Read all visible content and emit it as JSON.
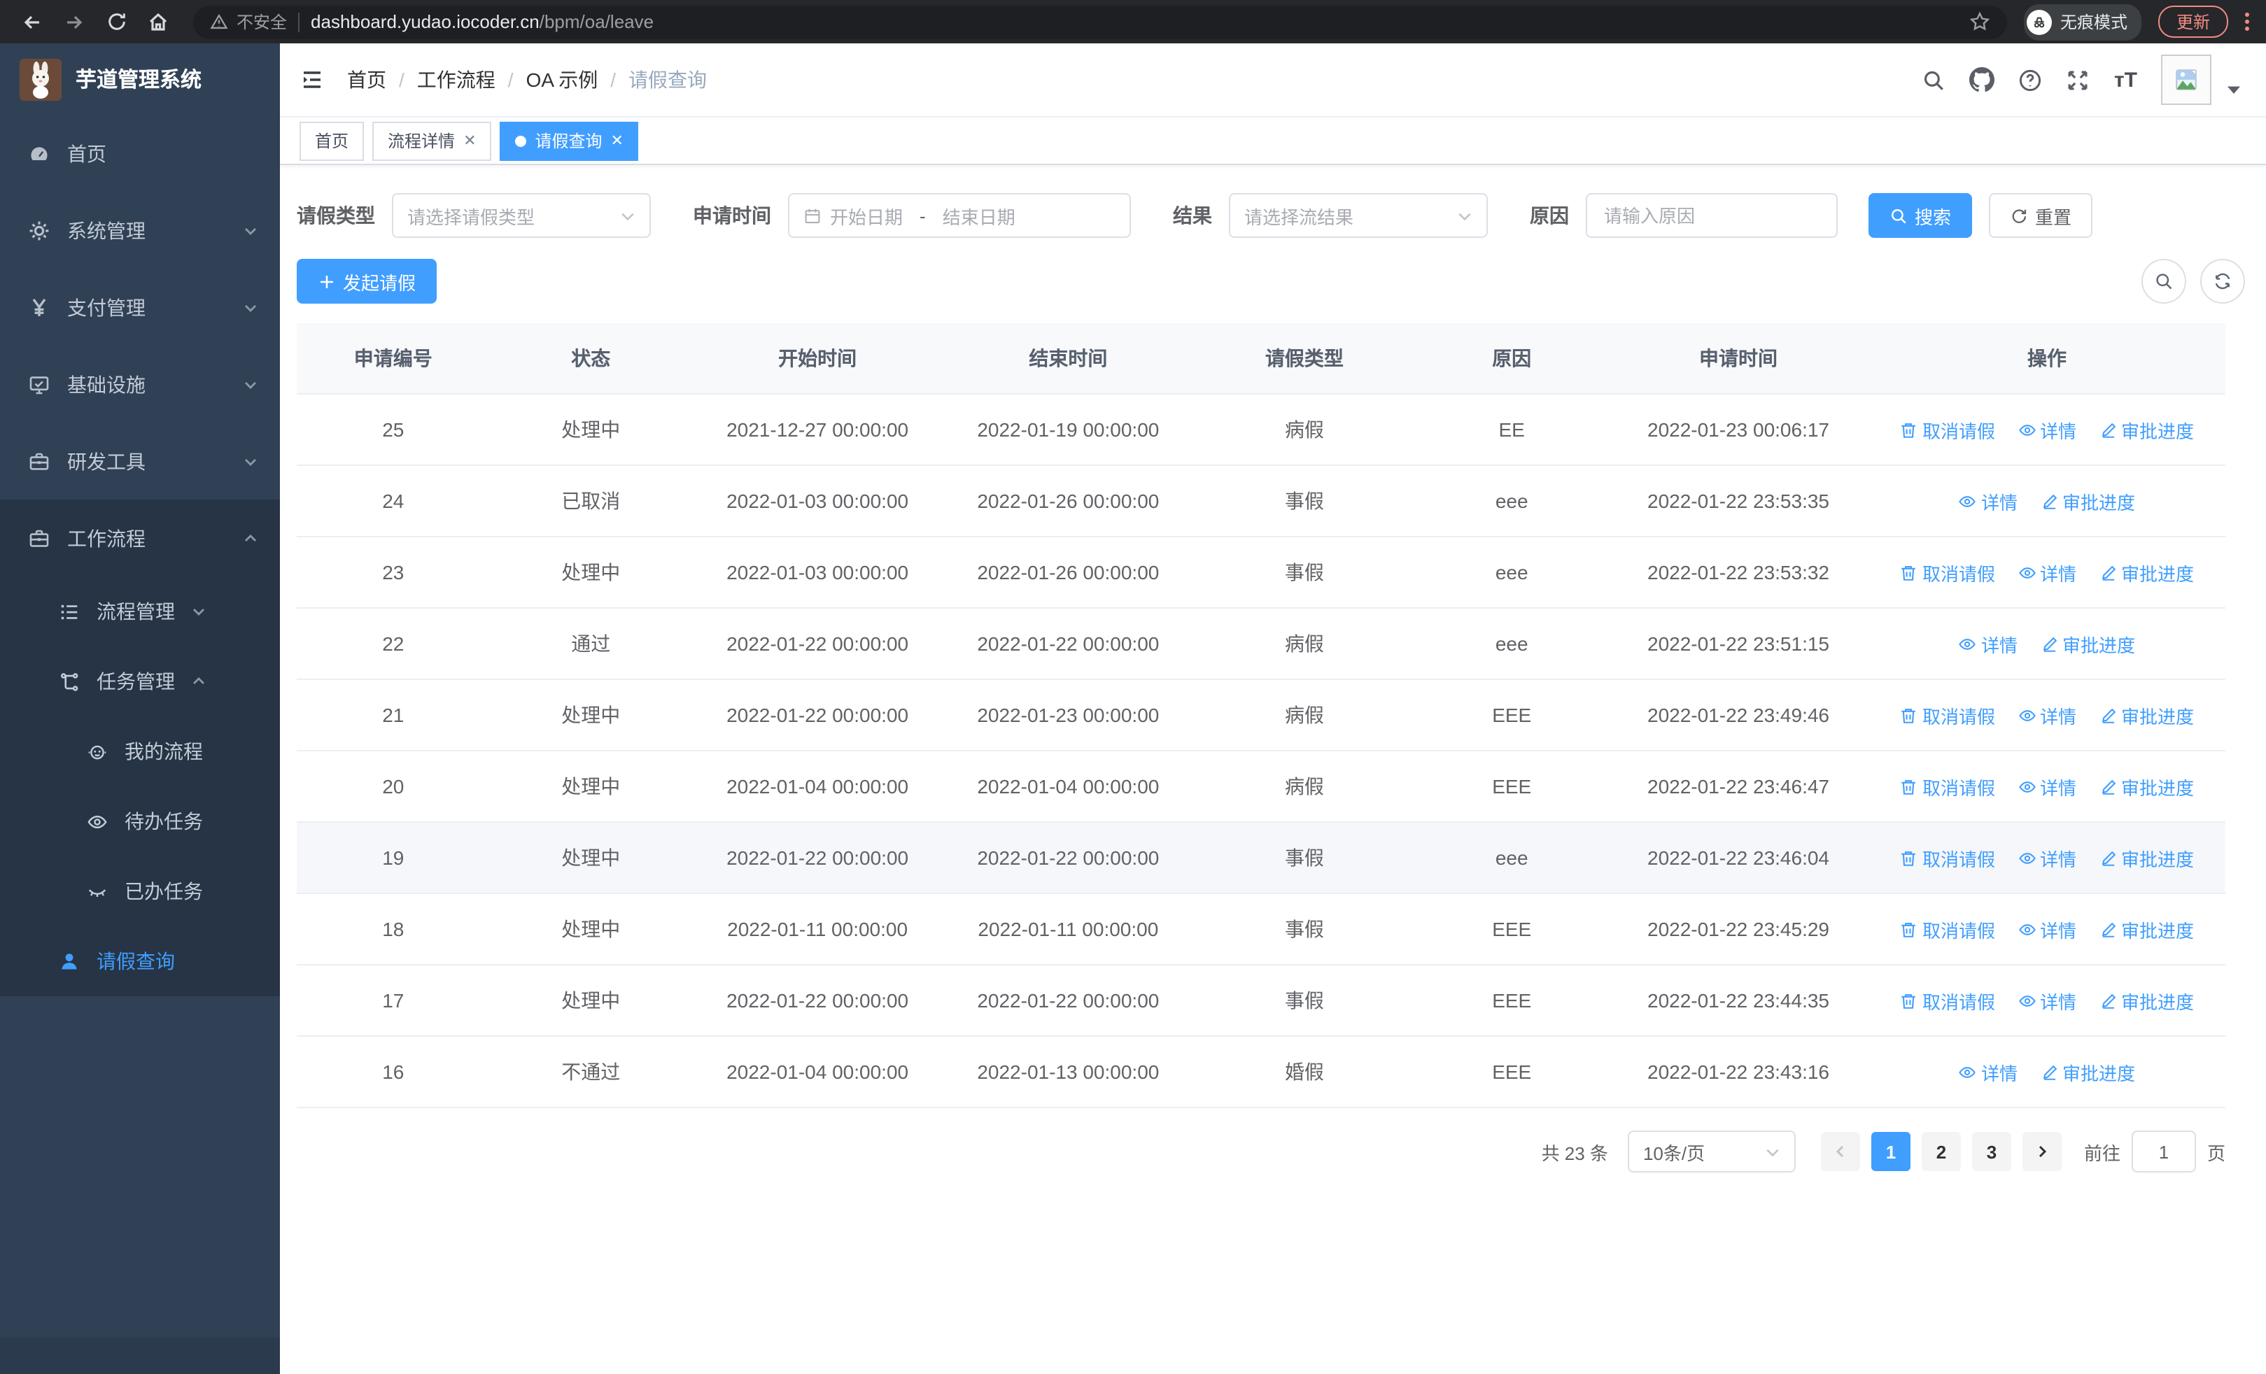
{
  "browser": {
    "security_label": "不安全",
    "url_host": "dashboard.yudao.iocoder.cn",
    "url_path": "/bpm/oa/leave",
    "incognito_label": "无痕模式",
    "update_label": "更新"
  },
  "sidebar": {
    "app_title": "芋道管理系统",
    "items": [
      {
        "label": "首页"
      },
      {
        "label": "系统管理"
      },
      {
        "label": "支付管理"
      },
      {
        "label": "基础设施"
      },
      {
        "label": "研发工具"
      },
      {
        "label": "工作流程"
      }
    ],
    "sub": [
      {
        "label": "流程管理"
      },
      {
        "label": "任务管理"
      },
      {
        "label": "我的流程"
      },
      {
        "label": "待办任务"
      },
      {
        "label": "已办任务"
      },
      {
        "label": "请假查询"
      }
    ]
  },
  "header": {
    "breadcrumb": [
      "首页",
      "工作流程",
      "OA 示例",
      "请假查询"
    ]
  },
  "tabs": [
    {
      "label": "首页"
    },
    {
      "label": "流程详情"
    },
    {
      "label": "请假查询"
    }
  ],
  "filters": {
    "leave_type_label": "请假类型",
    "leave_type_placeholder": "请选择请假类型",
    "apply_time_label": "申请时间",
    "start_date_placeholder": "开始日期",
    "range_separator": "-",
    "end_date_placeholder": "结束日期",
    "result_label": "结果",
    "result_placeholder": "请选择流结果",
    "reason_label": "原因",
    "reason_placeholder": "请输入原因",
    "search_label": "搜索",
    "reset_label": "重置"
  },
  "toolbar": {
    "create_label": "发起请假"
  },
  "table": {
    "columns": [
      "申请编号",
      "状态",
      "开始时间",
      "结束时间",
      "请假类型",
      "原因",
      "申请时间",
      "操作"
    ],
    "action_labels": {
      "cancel": "取消请假",
      "detail": "详情",
      "progress": "审批进度"
    },
    "rows": [
      {
        "id": "25",
        "status": "处理中",
        "start": "2021-12-27 00:00:00",
        "end": "2022-01-19 00:00:00",
        "type": "病假",
        "reason": "EE",
        "apply": "2022-01-23 00:06:17",
        "actions": [
          "cancel",
          "detail",
          "progress"
        ],
        "highlighted": false
      },
      {
        "id": "24",
        "status": "已取消",
        "start": "2022-01-03 00:00:00",
        "end": "2022-01-26 00:00:00",
        "type": "事假",
        "reason": "eee",
        "apply": "2022-01-22 23:53:35",
        "actions": [
          "detail",
          "progress"
        ],
        "highlighted": false
      },
      {
        "id": "23",
        "status": "处理中",
        "start": "2022-01-03 00:00:00",
        "end": "2022-01-26 00:00:00",
        "type": "事假",
        "reason": "eee",
        "apply": "2022-01-22 23:53:32",
        "actions": [
          "cancel",
          "detail",
          "progress"
        ],
        "highlighted": false
      },
      {
        "id": "22",
        "status": "通过",
        "start": "2022-01-22 00:00:00",
        "end": "2022-01-22 00:00:00",
        "type": "病假",
        "reason": "eee",
        "apply": "2022-01-22 23:51:15",
        "actions": [
          "detail",
          "progress"
        ],
        "highlighted": false
      },
      {
        "id": "21",
        "status": "处理中",
        "start": "2022-01-22 00:00:00",
        "end": "2022-01-23 00:00:00",
        "type": "病假",
        "reason": "EEE",
        "apply": "2022-01-22 23:49:46",
        "actions": [
          "cancel",
          "detail",
          "progress"
        ],
        "highlighted": false
      },
      {
        "id": "20",
        "status": "处理中",
        "start": "2022-01-04 00:00:00",
        "end": "2022-01-04 00:00:00",
        "type": "病假",
        "reason": "EEE",
        "apply": "2022-01-22 23:46:47",
        "actions": [
          "cancel",
          "detail",
          "progress"
        ],
        "highlighted": false
      },
      {
        "id": "19",
        "status": "处理中",
        "start": "2022-01-22 00:00:00",
        "end": "2022-01-22 00:00:00",
        "type": "事假",
        "reason": "eee",
        "apply": "2022-01-22 23:46:04",
        "actions": [
          "cancel",
          "detail",
          "progress"
        ],
        "highlighted": true
      },
      {
        "id": "18",
        "status": "处理中",
        "start": "2022-01-11 00:00:00",
        "end": "2022-01-11 00:00:00",
        "type": "事假",
        "reason": "EEE",
        "apply": "2022-01-22 23:45:29",
        "actions": [
          "cancel",
          "detail",
          "progress"
        ],
        "highlighted": false
      },
      {
        "id": "17",
        "status": "处理中",
        "start": "2022-01-22 00:00:00",
        "end": "2022-01-22 00:00:00",
        "type": "事假",
        "reason": "EEE",
        "apply": "2022-01-22 23:44:35",
        "actions": [
          "cancel",
          "detail",
          "progress"
        ],
        "highlighted": false
      },
      {
        "id": "16",
        "status": "不通过",
        "start": "2022-01-04 00:00:00",
        "end": "2022-01-13 00:00:00",
        "type": "婚假",
        "reason": "EEE",
        "apply": "2022-01-22 23:43:16",
        "actions": [
          "detail",
          "progress"
        ],
        "highlighted": false
      }
    ]
  },
  "pagination": {
    "total_label": "共 23 条",
    "page_size_label": "10条/页",
    "pages": [
      "1",
      "2",
      "3"
    ],
    "active_page": "1",
    "goto_label": "前往",
    "goto_value": "1",
    "page_suffix_label": "页"
  },
  "colors": {
    "accent": "#409eff",
    "sidebar_bg": "#304156",
    "sidebar_submenu_bg": "#263445",
    "update_accent": "#f28b82",
    "link_blue": "#409eff"
  }
}
